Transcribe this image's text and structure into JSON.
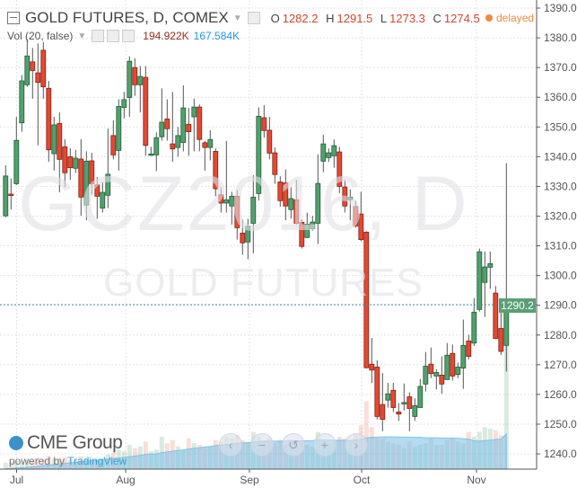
{
  "header": {
    "title": "GOLD FUTURES, D, COMEX",
    "ohlc": [
      {
        "key": "O",
        "value": "1282.2"
      },
      {
        "key": "H",
        "value": "1291.5"
      },
      {
        "key": "L",
        "value": "1273.3"
      },
      {
        "key": "C",
        "value": "1274.5"
      }
    ],
    "status": "delayed"
  },
  "volume_legend": {
    "label": "Vol (20, false)",
    "volume": "194.922K",
    "ma": "167.584K"
  },
  "watermark": {
    "symbol": "GCZ2016, D",
    "name": "GOLD FUTURES"
  },
  "branding": {
    "logo": "CME Group",
    "powered_by": "powered by",
    "platform": "TradingView"
  },
  "nav_buttons": [
    {
      "name": "scroll-left",
      "glyph": "‹"
    },
    {
      "name": "zoom-out",
      "glyph": "−"
    },
    {
      "name": "reset",
      "glyph": "↺"
    },
    {
      "name": "zoom-in",
      "glyph": "+"
    },
    {
      "name": "scroll-right",
      "glyph": "›"
    }
  ],
  "last_price_label": "1290.2",
  "colors": {
    "up": "#53a06e",
    "down": "#e04a34",
    "up_border": "#1d5e33",
    "down_border": "#8a1e12",
    "last_price": "#5a9f75",
    "volume_ma": "#8ecae6",
    "delayed": "#f08a3c"
  },
  "chart_data": {
    "type": "candlestick",
    "y_axis": {
      "ticks": [
        1390,
        1380,
        1370,
        1360,
        1350,
        1340,
        1330,
        1320,
        1310,
        1300,
        1290,
        1280,
        1270,
        1260,
        1250,
        1240
      ],
      "range": [
        1237,
        1392
      ]
    },
    "x_axis": {
      "ticks": [
        "Jul",
        "Aug",
        "Sep",
        "Oct",
        "Nov"
      ]
    },
    "grid": true,
    "last_price": 1290.2,
    "ohlc": [
      [
        1320.1,
        1337.1,
        1319.6,
        1333.5
      ],
      [
        1327.4,
        1332.7,
        1322.2,
        1327.0
      ],
      [
        1330.9,
        1353.4,
        1330.5,
        1345.5
      ],
      [
        1351.4,
        1367.5,
        1348.4,
        1365.5
      ],
      [
        1364.2,
        1379.6,
        1363.5,
        1373.9
      ],
      [
        1371.9,
        1376.6,
        1359.5,
        1369.0
      ],
      [
        1368.2,
        1378.1,
        1343.8,
        1365.0
      ],
      [
        1375.8,
        1378.6,
        1359.5,
        1363.5
      ],
      [
        1363.0,
        1365.5,
        1338.3,
        1342.3
      ],
      [
        1341.0,
        1353.4,
        1335.3,
        1350.7
      ],
      [
        1351.2,
        1354.9,
        1328.0,
        1339.1
      ],
      [
        1343.3,
        1345.9,
        1329.7,
        1334.6
      ],
      [
        1340.0,
        1342.8,
        1332.2,
        1336.3
      ],
      [
        1336.1,
        1342.3,
        1334.5,
        1339.5
      ],
      [
        1339.2,
        1345.9,
        1320.1,
        1326.4
      ],
      [
        1323.7,
        1341.8,
        1318.6,
        1338.5
      ],
      [
        1338.6,
        1341.3,
        1327.2,
        1330.9
      ],
      [
        1330.5,
        1333.2,
        1319.1,
        1326.7
      ],
      [
        1322.7,
        1331.5,
        1321.2,
        1328.0
      ],
      [
        1327.0,
        1349.4,
        1322.7,
        1334.1
      ],
      [
        1347.1,
        1352.2,
        1339.1,
        1340.6
      ],
      [
        1342.1,
        1359.3,
        1335.3,
        1356.9
      ],
      [
        1356.6,
        1361.8,
        1352.9,
        1359.2
      ],
      [
        1359.9,
        1373.8,
        1353.4,
        1372.1
      ],
      [
        1370.0,
        1373.1,
        1360.5,
        1364.2
      ],
      [
        1364.2,
        1370.5,
        1354.9,
        1367.0
      ],
      [
        1366.7,
        1370.5,
        1340.3,
        1343.8
      ],
      [
        1340.8,
        1343.3,
        1340.3,
        1340.9
      ],
      [
        1340.6,
        1348.2,
        1335.1,
        1346.4
      ],
      [
        1346.7,
        1363.0,
        1345.4,
        1351.6
      ],
      [
        1352.7,
        1359.3,
        1345.4,
        1349.4
      ],
      [
        1344.3,
        1361.8,
        1338.3,
        1342.6
      ],
      [
        1343.1,
        1350.0,
        1340.0,
        1347.1
      ],
      [
        1344.8,
        1364.0,
        1341.8,
        1356.4
      ],
      [
        1350.9,
        1356.4,
        1340.3,
        1348.4
      ],
      [
        1353.4,
        1359.5,
        1341.8,
        1356.7
      ],
      [
        1356.7,
        1357.6,
        1341.8,
        1345.8
      ],
      [
        1344.7,
        1345.3,
        1335.3,
        1343.1
      ],
      [
        1343.1,
        1348.9,
        1338.8,
        1345.8
      ],
      [
        1341.8,
        1342.8,
        1326.7,
        1329.2
      ],
      [
        1327.2,
        1329.7,
        1321.2,
        1324.4
      ],
      [
        1324.4,
        1345.3,
        1321.2,
        1325.5
      ],
      [
        1323.4,
        1328.2,
        1317.1,
        1326.7
      ],
      [
        1326.7,
        1328.7,
        1312.1,
        1316.1
      ],
      [
        1314.3,
        1318.9,
        1307.0,
        1311.0
      ],
      [
        1311.3,
        1319.1,
        1305.5,
        1316.6
      ],
      [
        1317.6,
        1333.8,
        1307.5,
        1326.4
      ],
      [
        1327.6,
        1356.6,
        1325.2,
        1353.6
      ],
      [
        1353.1,
        1357.4,
        1346.4,
        1348.8
      ],
      [
        1348.9,
        1353.4,
        1339.1,
        1341.2
      ],
      [
        1341.3,
        1343.1,
        1330.9,
        1334.0
      ],
      [
        1331.5,
        1333.4,
        1323.2,
        1325.2
      ],
      [
        1331.2,
        1335.7,
        1318.6,
        1323.4
      ],
      [
        1322.2,
        1329.7,
        1319.1,
        1325.9
      ],
      [
        1325.5,
        1332.2,
        1317.1,
        1317.6
      ],
      [
        1317.9,
        1318.9,
        1309.1,
        1309.8
      ],
      [
        1312.8,
        1321.2,
        1312.6,
        1317.3
      ],
      [
        1315.8,
        1320.1,
        1315.1,
        1318.0
      ],
      [
        1317.6,
        1340.8,
        1310.6,
        1331.0
      ],
      [
        1338.5,
        1347.4,
        1334.8,
        1344.3
      ],
      [
        1339.7,
        1342.8,
        1338.3,
        1341.3
      ],
      [
        1340.3,
        1345.8,
        1336.3,
        1343.7
      ],
      [
        1341.6,
        1343.3,
        1327.7,
        1330.0
      ],
      [
        1329.8,
        1332.2,
        1321.2,
        1323.4
      ],
      [
        1325.5,
        1329.0,
        1318.6,
        1326.4
      ],
      [
        1323.2,
        1325.2,
        1316.1,
        1316.7
      ],
      [
        1320.7,
        1328.2,
        1311.6,
        1312.1
      ],
      [
        1314.6,
        1314.9,
        1268.7,
        1269.0
      ],
      [
        1270.2,
        1279.0,
        1263.9,
        1268.2
      ],
      [
        1269.2,
        1271.5,
        1251.6,
        1252.6
      ],
      [
        1256.6,
        1267.2,
        1247.6,
        1251.6
      ],
      [
        1258.1,
        1263.9,
        1255.6,
        1260.2
      ],
      [
        1261.4,
        1263.9,
        1254.1,
        1255.6
      ],
      [
        1254.1,
        1257.1,
        1251.1,
        1253.4
      ],
      [
        1256.8,
        1263.7,
        1254.6,
        1257.3
      ],
      [
        1259.2,
        1260.7,
        1247.6,
        1255.3
      ],
      [
        1252.6,
        1258.7,
        1251.1,
        1256.2
      ],
      [
        1255.6,
        1265.2,
        1255.6,
        1262.7
      ],
      [
        1263.5,
        1274.3,
        1261.0,
        1269.5
      ],
      [
        1270.2,
        1275.8,
        1265.5,
        1267.0
      ],
      [
        1266.2,
        1268.5,
        1261.7,
        1267.4
      ],
      [
        1266.5,
        1272.8,
        1260.2,
        1263.5
      ],
      [
        1265.0,
        1277.3,
        1265.0,
        1273.2
      ],
      [
        1273.8,
        1276.8,
        1264.7,
        1266.2
      ],
      [
        1266.7,
        1270.7,
        1265.5,
        1269.2
      ],
      [
        1268.9,
        1285.2,
        1261.9,
        1276.5
      ],
      [
        1278.0,
        1280.1,
        1271.8,
        1272.8
      ],
      [
        1277.3,
        1292.4,
        1276.3,
        1287.7
      ],
      [
        1288.6,
        1309.1,
        1287.9,
        1308.0
      ],
      [
        1297.7,
        1308.1,
        1286.1,
        1302.9
      ],
      [
        1302.8,
        1308.1,
        1295.5,
        1304.0
      ],
      [
        1294.1,
        1296.5,
        1278.6,
        1278.8
      ],
      [
        1282.2,
        1291.5,
        1273.3,
        1274.5
      ],
      [
        1276.5,
        1337.8,
        1267.7,
        1289.9
      ]
    ],
    "volume_k": [
      40,
      45,
      50,
      45,
      60,
      55,
      70,
      60,
      80,
      65,
      70,
      75,
      60,
      55,
      80,
      70,
      60,
      55,
      65,
      90,
      100,
      120,
      110,
      150,
      130,
      140,
      170,
      110,
      120,
      200,
      160,
      180,
      140,
      120,
      190,
      160,
      150,
      130,
      140,
      180,
      170,
      200,
      190,
      210,
      180,
      170,
      230,
      200,
      170,
      190,
      160,
      180,
      150,
      170,
      160,
      170,
      150,
      140,
      230,
      180,
      160,
      170,
      200,
      190,
      180,
      220,
      270,
      420,
      260,
      200,
      190,
      170,
      160,
      150,
      130,
      170,
      140,
      150,
      160,
      190,
      150,
      150,
      180,
      190,
      170,
      160,
      230,
      200,
      230,
      260,
      250,
      240,
      210,
      780
    ],
    "volume_ma_period": 20
  }
}
